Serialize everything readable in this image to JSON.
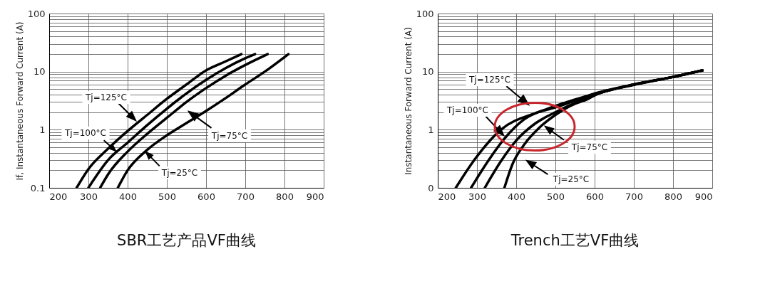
{
  "chart_data": [
    {
      "type": "line",
      "title": "SBR工艺产品VF曲线",
      "ylabel": "If, Instantaneous Forward Current (A)",
      "log": "y",
      "grid": true,
      "legend": false,
      "line_style": "solid",
      "xlim": [
        200,
        900
      ],
      "xticks": [
        200,
        300,
        400,
        500,
        600,
        700,
        800,
        900
      ],
      "ylim": [
        0.1,
        100
      ],
      "yticks": [
        0.1,
        {
          "value": 0.2,
          "label": null
        },
        {
          "value": 0.3,
          "label": null
        },
        {
          "value": 0.4,
          "label": null
        },
        {
          "value": 0.5,
          "label": null
        },
        {
          "value": 0.6,
          "label": null
        },
        {
          "value": 0.7,
          "label": null
        },
        {
          "value": 0.8,
          "label": null
        },
        {
          "value": 0.9,
          "label": null
        },
        1,
        {
          "value": 2,
          "label": null
        },
        {
          "value": 3,
          "label": null
        },
        {
          "value": 4,
          "label": null
        },
        {
          "value": 5,
          "label": null
        },
        {
          "value": 6,
          "label": null
        },
        {
          "value": 7,
          "label": null
        },
        {
          "value": 8,
          "label": null
        },
        {
          "value": 9,
          "label": null
        },
        10,
        {
          "value": 20,
          "label": null
        },
        {
          "value": 30,
          "label": null
        },
        {
          "value": 40,
          "label": null
        },
        {
          "value": 50,
          "label": null
        },
        {
          "value": 60,
          "label": null
        },
        {
          "value": 70,
          "label": null
        },
        {
          "value": 80,
          "label": null
        },
        {
          "value": 90,
          "label": null
        },
        100
      ],
      "series": [
        {
          "color": "#000000",
          "x": [
            270,
            300,
            350,
            400,
            450,
            500,
            550,
            600,
            650,
            690
          ],
          "values": [
            0.1,
            0.21,
            0.47,
            0.95,
            1.8,
            3.4,
            6,
            10.5,
            15,
            20
          ]
        },
        {
          "color": "#000000",
          "x": [
            300,
            350,
            400,
            450,
            500,
            550,
            600,
            650,
            700,
            725
          ],
          "values": [
            0.1,
            0.3,
            0.6,
            1.2,
            2.3,
            4.2,
            7.2,
            11.5,
            17,
            20
          ]
        },
        {
          "color": "#000000",
          "x": [
            330,
            350,
            400,
            450,
            500,
            550,
            600,
            650,
            700,
            757
          ],
          "values": [
            0.1,
            0.17,
            0.42,
            0.85,
            1.6,
            3,
            5.2,
            8.5,
            13,
            20
          ]
        },
        {
          "color": "#000000",
          "x": [
            375,
            400,
            450,
            500,
            550,
            600,
            650,
            700,
            750,
            810
          ],
          "values": [
            0.1,
            0.2,
            0.45,
            0.8,
            1.3,
            2.1,
            3.5,
            6,
            10,
            20
          ]
        }
      ],
      "annotations": [
        "Tj=125°C",
        "Tj=100°C",
        "Tj=75°C",
        "Tj=25°C"
      ]
    },
    {
      "type": "line",
      "title": "Trench工艺VF曲线",
      "ylabel": "Instantaneous Forward Current (A)",
      "log": "y",
      "grid": true,
      "legend": false,
      "line_style": "solid",
      "xlim": [
        200,
        900
      ],
      "xticks": [
        200,
        300,
        400,
        500,
        600,
        700,
        800,
        900
      ],
      "ylim": [
        0.1,
        100
      ],
      "yticks": [
        {
          "value": 0.1,
          "label": "0"
        },
        {
          "value": 0.2,
          "label": null
        },
        {
          "value": 0.3,
          "label": null
        },
        {
          "value": 0.4,
          "label": null
        },
        {
          "value": 0.5,
          "label": null
        },
        {
          "value": 0.6,
          "label": null
        },
        {
          "value": 0.7,
          "label": null
        },
        {
          "value": 0.8,
          "label": null
        },
        {
          "value": 0.9,
          "label": null
        },
        1,
        {
          "value": 2,
          "label": null
        },
        {
          "value": 3,
          "label": null
        },
        {
          "value": 4,
          "label": null
        },
        {
          "value": 5,
          "label": null
        },
        {
          "value": 6,
          "label": null
        },
        {
          "value": 7,
          "label": null
        },
        {
          "value": 8,
          "label": null
        },
        {
          "value": 9,
          "label": null
        },
        10,
        {
          "value": 20,
          "label": null
        },
        {
          "value": 30,
          "label": null
        },
        {
          "value": 40,
          "label": null
        },
        {
          "value": 50,
          "label": null
        },
        {
          "value": 60,
          "label": null
        },
        {
          "value": 70,
          "label": null
        },
        {
          "value": 80,
          "label": null
        },
        {
          "value": 90,
          "label": null
        },
        100
      ],
      "series": [
        {
          "color": "#000000",
          "x": [
            246,
            293,
            361,
            446,
            507,
            600,
            700,
            800,
            875
          ],
          "values": [
            0.1,
            0.3,
            1,
            1.9,
            2.5,
            4.2,
            6,
            8.1,
            10.5
          ]
        },
        {
          "color": "#000000",
          "x": [
            285,
            330,
            370,
            420,
            480,
            530,
            600,
            700,
            800,
            875
          ],
          "values": [
            0.1,
            0.3,
            0.7,
            1.5,
            2.3,
            3,
            4.1,
            6,
            8.1,
            10.5
          ]
        },
        {
          "color": "#000000",
          "x": [
            320,
            360,
            400,
            450,
            500,
            550,
            600,
            700,
            800,
            875
          ],
          "values": [
            0.1,
            0.28,
            0.65,
            1.3,
            2,
            2.9,
            4,
            6,
            8.1,
            10.5
          ]
        },
        {
          "color": "#000000",
          "x": [
            370,
            390,
            420,
            460,
            500,
            550,
            580,
            600,
            700,
            800,
            875
          ],
          "values": [
            0.1,
            0.25,
            0.55,
            1.1,
            1.8,
            2.8,
            3.3,
            3.9,
            5.9,
            8.1,
            10.5
          ]
        }
      ],
      "annotations": [
        "Tj=125°C",
        "Tj=100°C",
        "Tj=75°C",
        "Tj=25°C"
      ]
    }
  ]
}
